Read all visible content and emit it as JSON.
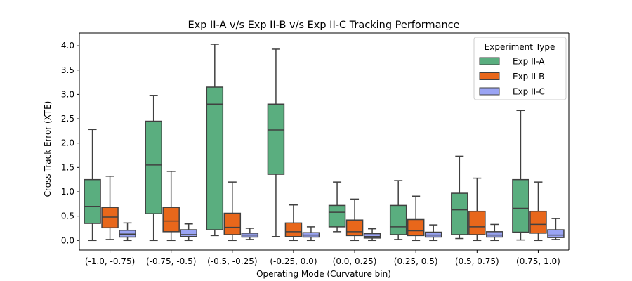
{
  "chart_data": {
    "type": "boxplot",
    "title": "Exp II-A v/s Exp II-B  v/s Exp II-C Tracking Performance",
    "xlabel": "Operating Mode (Curvature bin)",
    "ylabel": "Cross-Track Error (XTE)",
    "ylim": [
      -0.2,
      4.25
    ],
    "yticks": [
      0.0,
      0.5,
      1.0,
      1.5,
      2.0,
      2.5,
      3.0,
      3.5,
      4.0
    ],
    "ytick_labels": [
      "0.0",
      "0.5",
      "1.0",
      "1.5",
      "2.0",
      "2.5",
      "3.0",
      "3.5",
      "4.0"
    ],
    "categories": [
      "(-1.0, -0.75)",
      "(-0.75, -0.5)",
      "(-0.5, -0.25)",
      "(-0.25, 0.0)",
      "(0.0, 0.25)",
      "(0.25, 0.5)",
      "(0.5, 0.75)",
      "(0.75, 1.0)"
    ],
    "legend": {
      "title": "Experiment Type",
      "placement": "upper-right"
    },
    "grid": false,
    "series": [
      {
        "name": "Exp II-A",
        "color": "#5aae7f",
        "boxes": [
          {
            "whislo": 0.0,
            "q1": 0.35,
            "median": 0.7,
            "q3": 1.25,
            "whishi": 2.28
          },
          {
            "whislo": 0.0,
            "q1": 0.55,
            "median": 1.55,
            "q3": 2.45,
            "whishi": 2.98
          },
          {
            "whislo": 0.1,
            "q1": 0.22,
            "median": 2.8,
            "q3": 3.15,
            "whishi": 4.03
          },
          {
            "whislo": 0.08,
            "q1": 1.36,
            "median": 2.27,
            "q3": 2.8,
            "whishi": 3.93
          },
          {
            "whislo": 0.18,
            "q1": 0.28,
            "median": 0.58,
            "q3": 0.72,
            "whishi": 1.2
          },
          {
            "whislo": 0.02,
            "q1": 0.12,
            "median": 0.28,
            "q3": 0.72,
            "whishi": 1.23
          },
          {
            "whislo": 0.04,
            "q1": 0.12,
            "median": 0.63,
            "q3": 0.97,
            "whishi": 1.73
          },
          {
            "whislo": 0.01,
            "q1": 0.17,
            "median": 0.66,
            "q3": 1.25,
            "whishi": 2.67
          }
        ]
      },
      {
        "name": "Exp II-B",
        "color": "#e8671b",
        "boxes": [
          {
            "whislo": 0.02,
            "q1": 0.26,
            "median": 0.48,
            "q3": 0.68,
            "whishi": 1.32
          },
          {
            "whislo": 0.0,
            "q1": 0.18,
            "median": 0.4,
            "q3": 0.68,
            "whishi": 1.42
          },
          {
            "whislo": 0.0,
            "q1": 0.12,
            "median": 0.27,
            "q3": 0.56,
            "whishi": 1.2
          },
          {
            "whislo": 0.0,
            "q1": 0.08,
            "median": 0.18,
            "q3": 0.36,
            "whishi": 0.73
          },
          {
            "whislo": 0.0,
            "q1": 0.1,
            "median": 0.18,
            "q3": 0.42,
            "whishi": 0.85
          },
          {
            "whislo": 0.0,
            "q1": 0.1,
            "median": 0.2,
            "q3": 0.43,
            "whishi": 0.91
          },
          {
            "whislo": 0.0,
            "q1": 0.12,
            "median": 0.28,
            "q3": 0.6,
            "whishi": 1.28
          },
          {
            "whislo": 0.0,
            "q1": 0.15,
            "median": 0.33,
            "q3": 0.6,
            "whishi": 1.2
          }
        ]
      },
      {
        "name": "Exp II-C",
        "color": "#9aa4f4",
        "boxes": [
          {
            "whislo": 0.0,
            "q1": 0.07,
            "median": 0.13,
            "q3": 0.21,
            "whishi": 0.36
          },
          {
            "whislo": 0.0,
            "q1": 0.08,
            "median": 0.12,
            "q3": 0.22,
            "whishi": 0.34
          },
          {
            "whislo": 0.02,
            "q1": 0.07,
            "median": 0.11,
            "q3": 0.15,
            "whishi": 0.25
          },
          {
            "whislo": 0.0,
            "q1": 0.07,
            "median": 0.11,
            "q3": 0.16,
            "whishi": 0.28
          },
          {
            "whislo": 0.0,
            "q1": 0.05,
            "median": 0.08,
            "q3": 0.14,
            "whishi": 0.24
          },
          {
            "whislo": 0.0,
            "q1": 0.07,
            "median": 0.11,
            "q3": 0.17,
            "whishi": 0.32
          },
          {
            "whislo": 0.0,
            "q1": 0.07,
            "median": 0.11,
            "q3": 0.18,
            "whishi": 0.33
          },
          {
            "whislo": 0.02,
            "q1": 0.06,
            "median": 0.11,
            "q3": 0.22,
            "whishi": 0.45
          }
        ]
      }
    ]
  }
}
